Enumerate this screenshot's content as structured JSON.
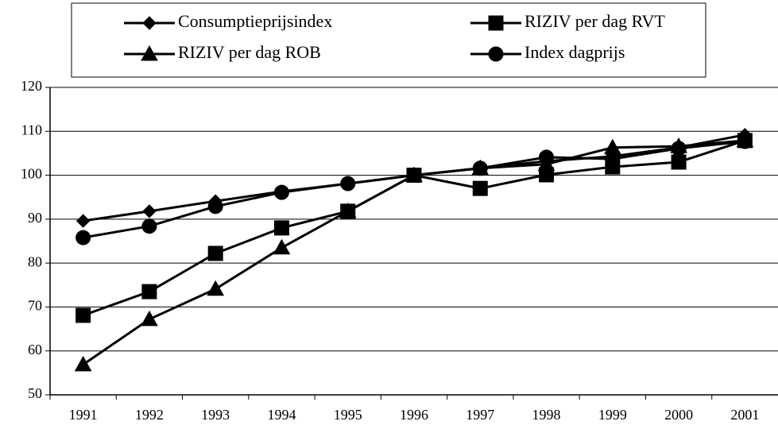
{
  "chart_data": {
    "type": "line",
    "categories": [
      "1991",
      "1992",
      "1993",
      "1994",
      "1995",
      "1996",
      "1997",
      "1998",
      "1999",
      "2000",
      "2001"
    ],
    "series": [
      {
        "name": "Consumptieprijsindex",
        "color": "#000000",
        "marker": "diamond",
        "values": [
          89.6,
          91.8,
          94.1,
          96.3,
          98.1,
          100,
          101.6,
          103.2,
          104.3,
          106.3,
          109.2
        ]
      },
      {
        "name": "RIZIV per dag RVT",
        "color": "#000000",
        "marker": "square",
        "values": [
          68.1,
          73.5,
          82.2,
          88.0,
          91.8,
          100,
          97.0,
          100.1,
          101.9,
          103.0,
          107.9
        ]
      },
      {
        "name": "RIZIV per dag ROB",
        "color": "#000000",
        "marker": "triangle",
        "values": [
          56.9,
          67.2,
          74.1,
          83.5,
          91.8,
          100,
          101.6,
          102.5,
          106.3,
          106.6,
          107.9
        ]
      },
      {
        "name": "Index dagprijs",
        "color": "#000000",
        "marker": "circle",
        "values": [
          85.8,
          88.4,
          92.9,
          96.1,
          98.1,
          100,
          101.6,
          104.1,
          103.7,
          106.1,
          107.7
        ]
      }
    ],
    "ylim": [
      50,
      120
    ],
    "yticks": [
      50,
      60,
      70,
      80,
      90,
      100,
      110,
      120
    ],
    "grid": true,
    "legend": "top"
  }
}
